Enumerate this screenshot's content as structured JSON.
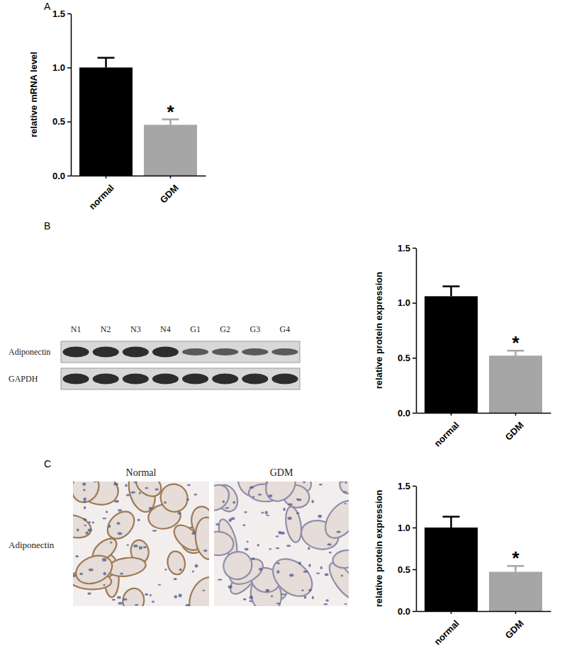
{
  "chart_data": [
    {
      "type": "bar",
      "y_label": "relative mRNA level",
      "categories": [
        "normal",
        "GDM"
      ],
      "values": [
        1.0,
        0.47
      ],
      "errors": [
        0.09,
        0.05
      ],
      "colors": [
        "#000000",
        "#a6a6a6"
      ],
      "ylim": [
        0,
        1.5
      ],
      "yticks": [
        {
          "value": 0,
          "label": "0.0"
        },
        {
          "value": 0.5,
          "label": "0.5"
        },
        {
          "value": 1.0,
          "label": "1.0"
        },
        {
          "value": 1.5,
          "label": "1.5"
        }
      ],
      "annotations": [
        {
          "text": "*",
          "x": "GDM"
        }
      ]
    },
    {
      "type": "bar",
      "y_label": "relative protein expression",
      "categories": [
        "normal",
        "GDM"
      ],
      "values": [
        1.06,
        0.52
      ],
      "errors": [
        0.09,
        0.045
      ],
      "colors": [
        "#000000",
        "#a6a6a6"
      ],
      "ylim": [
        0,
        1.5
      ],
      "yticks": [
        {
          "value": 0,
          "label": "0.0"
        },
        {
          "value": 0.5,
          "label": "0.5"
        },
        {
          "value": 1.0,
          "label": "1.0"
        },
        {
          "value": 1.5,
          "label": "1.5"
        }
      ],
      "annotations": [
        {
          "text": "*",
          "x": "GDM"
        }
      ]
    },
    {
      "type": "bar",
      "y_label": "relative protein expression",
      "categories": [
        "normal",
        "GDM"
      ],
      "values": [
        1.0,
        0.47
      ],
      "errors": [
        0.13,
        0.07
      ],
      "colors": [
        "#000000",
        "#a6a6a6"
      ],
      "ylim": [
        0,
        1.5
      ],
      "yticks": [
        {
          "value": 0,
          "label": "0.0"
        },
        {
          "value": 0.5,
          "label": "0.5"
        },
        {
          "value": 1.0,
          "label": "1.0"
        },
        {
          "value": 1.5,
          "label": "1.5"
        }
      ],
      "annotations": [
        {
          "text": "*",
          "x": "GDM"
        }
      ]
    }
  ],
  "figure": {
    "panels": [
      "A",
      "B",
      "C"
    ],
    "blot": {
      "lanes": [
        "N1",
        "N2",
        "N3",
        "N4",
        "G1",
        "G2",
        "G3",
        "G4"
      ],
      "rows": [
        "Adiponectin",
        "GAPDH"
      ]
    },
    "ihc": {
      "columns": [
        "Normal",
        "GDM"
      ],
      "row_label": "Adiponectin"
    }
  }
}
